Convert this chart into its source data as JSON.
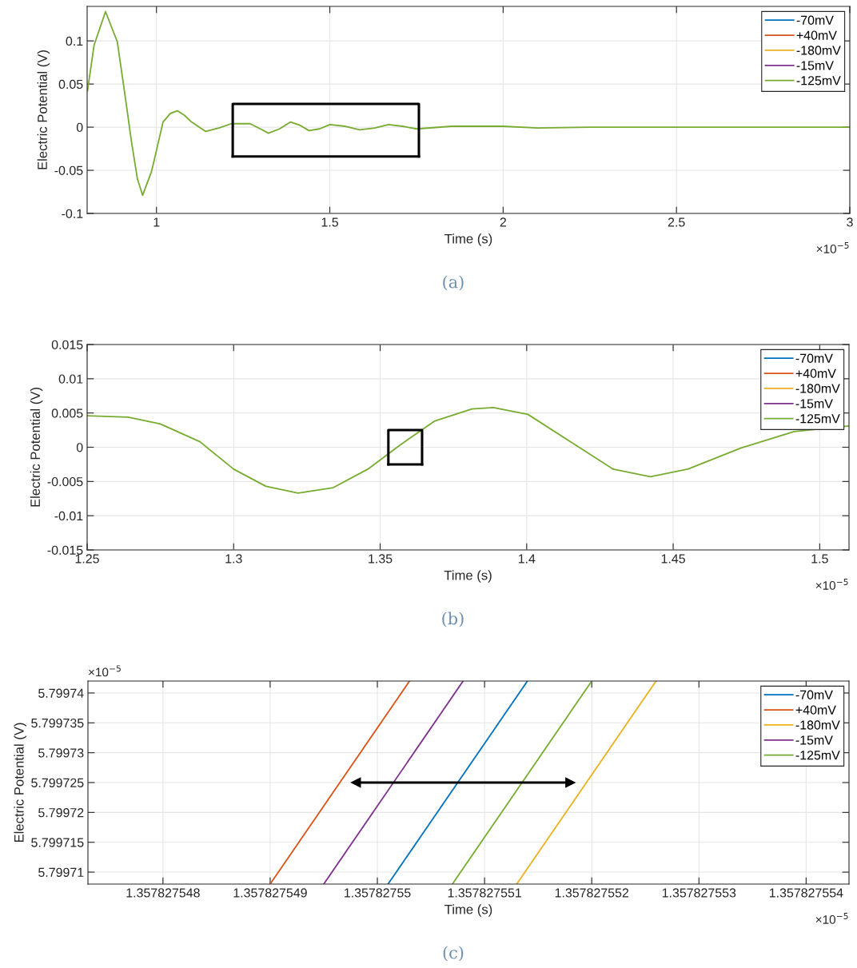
{
  "chart_data": [
    {
      "type": "line",
      "xlabel": "Time (s)",
      "ylabel": "Electric Potential (V)",
      "xlim": [
        0.8,
        3
      ],
      "ylim": [
        -0.1,
        0.14
      ],
      "xticks": [
        1,
        1.5,
        2,
        2.5,
        3
      ],
      "yticks": [
        -0.1,
        -0.05,
        0,
        0.05,
        0.1
      ],
      "grid": true,
      "legend": "top right",
      "x": [
        0.801,
        0.82,
        0.853,
        0.887,
        0.91,
        0.928,
        0.945,
        0.96,
        0.986,
        1.019,
        1.04,
        1.06,
        1.08,
        1.101,
        1.142,
        1.18,
        1.216,
        1.27,
        1.3,
        1.323,
        1.355,
        1.387,
        1.415,
        1.44,
        1.47,
        1.5,
        1.545,
        1.586,
        1.63,
        1.669,
        1.71,
        1.751,
        1.85,
        2.0,
        2.1,
        2.25,
        2.4,
        2.6,
        2.8,
        3.0
      ],
      "series": [
        {
          "name": "-70mV",
          "color": "#0072bd",
          "values": [
            null,
            null,
            null,
            null,
            null,
            null,
            null,
            null,
            null,
            null,
            null,
            null,
            null,
            null,
            null,
            null,
            null,
            null,
            null,
            null,
            null,
            null,
            null,
            null,
            null,
            null,
            null,
            null,
            null,
            null,
            null,
            null,
            null,
            null,
            null,
            null,
            null,
            null,
            null,
            null
          ]
        },
        {
          "name": "+40mV",
          "color": "#d95319",
          "values": [
            null,
            null,
            null,
            null,
            null,
            null,
            null,
            null,
            null,
            null,
            null,
            null,
            null,
            null,
            null,
            null,
            null,
            null,
            null,
            null,
            null,
            null,
            null,
            null,
            null,
            null,
            null,
            null,
            null,
            null,
            null,
            null,
            null,
            null,
            null,
            null,
            null,
            null,
            null,
            null
          ]
        },
        {
          "name": "-180mV",
          "color": "#edb120",
          "values": [
            null,
            null,
            null,
            null,
            null,
            null,
            null,
            null,
            null,
            null,
            null,
            null,
            null,
            null,
            null,
            null,
            null,
            null,
            null,
            null,
            null,
            null,
            null,
            null,
            null,
            null,
            null,
            null,
            null,
            null,
            null,
            null,
            null,
            null,
            null,
            null,
            null,
            null,
            null,
            null
          ]
        },
        {
          "name": "-15mV",
          "color": "#7e2f8e",
          "values": [
            null,
            null,
            null,
            null,
            null,
            null,
            null,
            null,
            null,
            null,
            null,
            null,
            null,
            null,
            null,
            null,
            null,
            null,
            null,
            null,
            null,
            null,
            null,
            null,
            null,
            null,
            null,
            null,
            null,
            null,
            null,
            null,
            null,
            null,
            null,
            null,
            null,
            null,
            null,
            null
          ]
        },
        {
          "name": "-125mV",
          "color": "#77ac30",
          "values": [
            0.042,
            0.095,
            0.134,
            0.099,
            0.035,
            -0.017,
            -0.06,
            -0.079,
            -0.051,
            0.006,
            0.016,
            0.019,
            0.014,
            0.006,
            -0.005,
            -0.001,
            0.004,
            0.004,
            -0.002,
            -0.007,
            -0.002,
            0.006,
            0.002,
            -0.004,
            -0.002,
            0.003,
            0.001,
            -0.003,
            -0.001,
            0.003,
            0.001,
            -0.002,
            0.001,
            0.001,
            -0.001,
            0,
            0,
            0,
            0,
            0
          ]
        },
        {
          "type": "line",
          "color": "#000000",
          "x": [
            1.22,
            1.22,
            1.757,
            1.757
          ],
          "values": [
            -0.034,
            0.027,
            0.027,
            -0.034
          ]
        },
        {
          "type": "line",
          "color": "#000000",
          "x": [
            1.22,
            1.757
          ],
          "values": [
            -0.034,
            -0.034
          ]
        }
      ],
      "annotations": [
        "×10$^{−5}$",
        "(a)"
      ]
    },
    {
      "type": "line",
      "xlabel": "Time (s)",
      "ylabel": "Electric Potential (V)",
      "xlim": [
        1.25,
        1.51
      ],
      "ylim": [
        -0.015,
        0.015
      ],
      "xticks": [
        1.25,
        1.3,
        1.35,
        1.4,
        1.45,
        1.5
      ],
      "yticks": [
        -0.015,
        -0.01,
        -0.005,
        0,
        0.005,
        0.01,
        0.015
      ],
      "grid": true,
      "legend": "top right",
      "x": [
        1.25,
        1.264,
        1.275,
        1.2885,
        1.3,
        1.311,
        1.322,
        1.334,
        1.3458,
        1.3567,
        1.3685,
        1.3813,
        1.3886,
        1.4004,
        1.4168,
        1.4295,
        1.4422,
        1.455,
        1.4732,
        1.4913,
        1.51
      ],
      "series": [
        {
          "name": "-70mV",
          "color": "#0072bd",
          "values": [
            null,
            null,
            null,
            null,
            null,
            null,
            null,
            null,
            null,
            null,
            null,
            null,
            null,
            null,
            null,
            null,
            null,
            null,
            null,
            null,
            null
          ]
        },
        {
          "name": "+40mV",
          "color": "#d95319",
          "values": [
            null,
            null,
            null,
            null,
            null,
            null,
            null,
            null,
            null,
            null,
            null,
            null,
            null,
            null,
            null,
            null,
            null,
            null,
            null,
            null,
            null
          ]
        },
        {
          "name": "-180mV",
          "color": "#edb120",
          "values": [
            null,
            null,
            null,
            null,
            null,
            null,
            null,
            null,
            null,
            null,
            null,
            null,
            null,
            null,
            null,
            null,
            null,
            null,
            null,
            null,
            null
          ]
        },
        {
          "name": "-15mV",
          "color": "#7e2f8e",
          "values": [
            null,
            null,
            null,
            null,
            null,
            null,
            null,
            null,
            null,
            null,
            null,
            null,
            null,
            null,
            null,
            null,
            null,
            null,
            null,
            null,
            null
          ]
        },
        {
          "name": "-125mV",
          "color": "#77ac30",
          "values": [
            0.0046,
            0.0044,
            0.0034,
            0.0008,
            -0.0032,
            -0.0057,
            -0.0067,
            -0.0059,
            -0.0032,
            0.0003,
            0.0038,
            0.0056,
            0.0058,
            0.0048,
            0.0003,
            -0.0032,
            -0.0043,
            -0.0032,
            -0.0001,
            0.0023,
            0.0031
          ]
        },
        {
          "type": "line",
          "color": "#000000",
          "x": [
            1.3528,
            1.3528,
            1.3643,
            1.3643
          ],
          "values": [
            -0.0025,
            0.0025,
            0.0025,
            -0.0025
          ]
        },
        {
          "type": "line",
          "color": "#000000",
          "x": [
            1.3528,
            1.3643
          ],
          "values": [
            -0.0025,
            -0.0025
          ]
        }
      ],
      "annotations": [
        "×10$^{−5}$",
        "(b)"
      ]
    },
    {
      "type": "line",
      "xlabel": "Time (s)",
      "ylabel": "Electric Potential (V)",
      "xlim": [
        1.3578275473,
        1.3578275544
      ],
      "ylim": [
        5.799708,
        5.799742
      ],
      "xticks": [
        1.357827548,
        1.357827549,
        1.35782755,
        1.357827551,
        1.357827552,
        1.357827553,
        1.357827554
      ],
      "yticks": [
        5.79971,
        5.799715,
        5.79972,
        5.799725,
        5.79973,
        5.799735,
        5.79974
      ],
      "grid": true,
      "legend": "top right",
      "series": [
        {
          "name": "-70mV",
          "color": "#0072bd",
          "x": [
            1.3578275501,
            1.3578275514
          ],
          "values": [
            5.799708,
            5.799742
          ]
        },
        {
          "name": "+40mV",
          "color": "#d95319",
          "x": [
            1.357827549,
            1.3578275503
          ],
          "values": [
            5.799708,
            5.799742
          ]
        },
        {
          "name": "-180mV",
          "color": "#edb120",
          "x": [
            1.3578275513,
            1.3578275526
          ],
          "values": [
            5.799708,
            5.799742
          ]
        },
        {
          "name": "-15mV",
          "color": "#7e2f8e",
          "x": [
            1.3578275495,
            1.3578275508
          ],
          "values": [
            5.799708,
            5.799742
          ]
        },
        {
          "name": "-125mV",
          "color": "#77ac30",
          "x": [
            1.3578275507,
            1.357827552
          ],
          "values": [
            5.799708,
            5.799742
          ]
        },
        {
          "type": "line",
          "color": "#000000",
          "marker": "triangle",
          "x": [
            1.3578275498,
            1.3578275518
          ],
          "values": [
            5.799725,
            5.799725
          ]
        }
      ],
      "annotations": [
        "×10$^{−5}$",
        "×10$^{−5}$",
        "(c)"
      ]
    }
  ]
}
